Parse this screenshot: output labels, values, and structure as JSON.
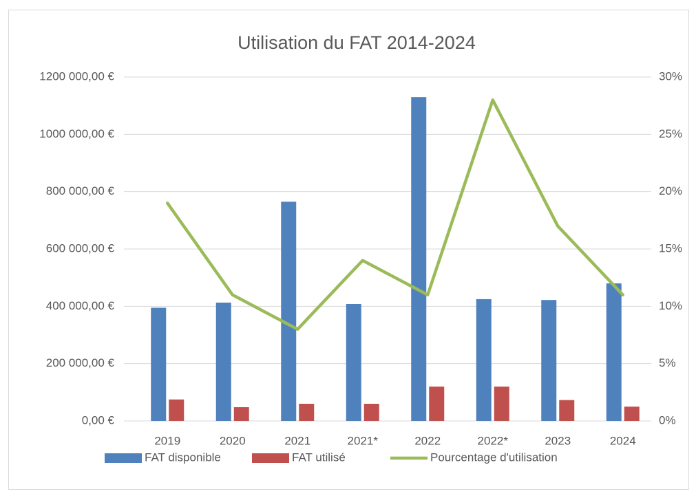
{
  "chart_data": {
    "type": "bar",
    "title": "Utilisation du FAT 2014-2024",
    "categories": [
      "2019",
      "2020",
      "2021",
      "2021*",
      "2022",
      "2022*",
      "2023",
      "2024"
    ],
    "series": [
      {
        "name": "FAT disponible",
        "type": "bar",
        "color": "#4f81bd",
        "values": [
          395000,
          413000,
          765000,
          408000,
          1130000,
          425000,
          422000,
          480000
        ]
      },
      {
        "name": "FAT utilisé",
        "type": "bar",
        "color": "#c0504d",
        "values": [
          75000,
          48000,
          60000,
          60000,
          120000,
          120000,
          73000,
          50000
        ]
      },
      {
        "name": "Pourcentage d'utilisation",
        "type": "line",
        "axis": "y2",
        "color": "#9bbb59",
        "values": [
          19,
          11,
          8,
          14,
          11,
          28,
          17,
          11
        ]
      }
    ],
    "ylim": [
      0,
      1200000
    ],
    "yticks": [
      {
        "value": 0,
        "label": "0,00 €"
      },
      {
        "value": 200000,
        "label": "200 000,00 €"
      },
      {
        "value": 400000,
        "label": "400 000,00 €"
      },
      {
        "value": 600000,
        "label": "600 000,00 €"
      },
      {
        "value": 800000,
        "label": "800 000,00 €"
      },
      {
        "value": 1000000,
        "label": "1000 000,00 €"
      },
      {
        "value": 1200000,
        "label": "1200 000,00 €"
      }
    ],
    "y2lim": [
      0,
      30
    ],
    "y2ticks": [
      {
        "value": 0,
        "label": "0%"
      },
      {
        "value": 5,
        "label": "5%"
      },
      {
        "value": 10,
        "label": "10%"
      },
      {
        "value": 15,
        "label": "15%"
      },
      {
        "value": 20,
        "label": "20%"
      },
      {
        "value": 25,
        "label": "25%"
      },
      {
        "value": 30,
        "label": "30%"
      }
    ],
    "grid": true,
    "legend": "bottom"
  }
}
